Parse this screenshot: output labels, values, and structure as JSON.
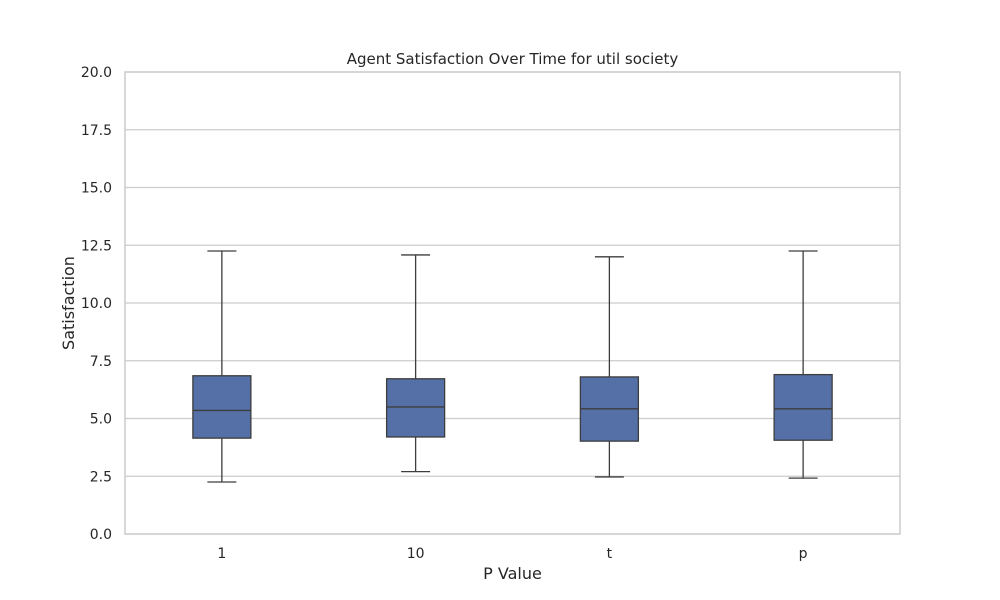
{
  "chart_data": {
    "type": "box",
    "title": "Agent Satisfaction Over Time for util society",
    "xlabel": "P Value",
    "ylabel": "Satisfaction",
    "ylim": [
      0,
      20
    ],
    "yticks": [
      0,
      2.5,
      5,
      7.5,
      10,
      12.5,
      15,
      17.5,
      20
    ],
    "ytick_labels": [
      "0.0",
      "2.5",
      "5.0",
      "7.5",
      "10.0",
      "12.5",
      "15.0",
      "17.5",
      "20.0"
    ],
    "grid": true,
    "grid_axis": "y",
    "categories": [
      "1",
      "10",
      "t",
      "p"
    ],
    "boxes": [
      {
        "whisker_low": 2.25,
        "q1": 4.15,
        "median": 5.35,
        "q3": 6.85,
        "whisker_high": 12.25
      },
      {
        "whisker_low": 2.7,
        "q1": 4.2,
        "median": 5.5,
        "q3": 6.72,
        "whisker_high": 12.08
      },
      {
        "whisker_low": 2.47,
        "q1": 4.02,
        "median": 5.42,
        "q3": 6.8,
        "whisker_high": 12.0
      },
      {
        "whisker_low": 2.42,
        "q1": 4.06,
        "median": 5.42,
        "q3": 6.9,
        "whisker_high": 12.25
      }
    ],
    "colors": {
      "box_fill": "#5470a6",
      "line": "#3d3d3d",
      "grid": "#cccccc",
      "frame": "#cccccc"
    }
  }
}
